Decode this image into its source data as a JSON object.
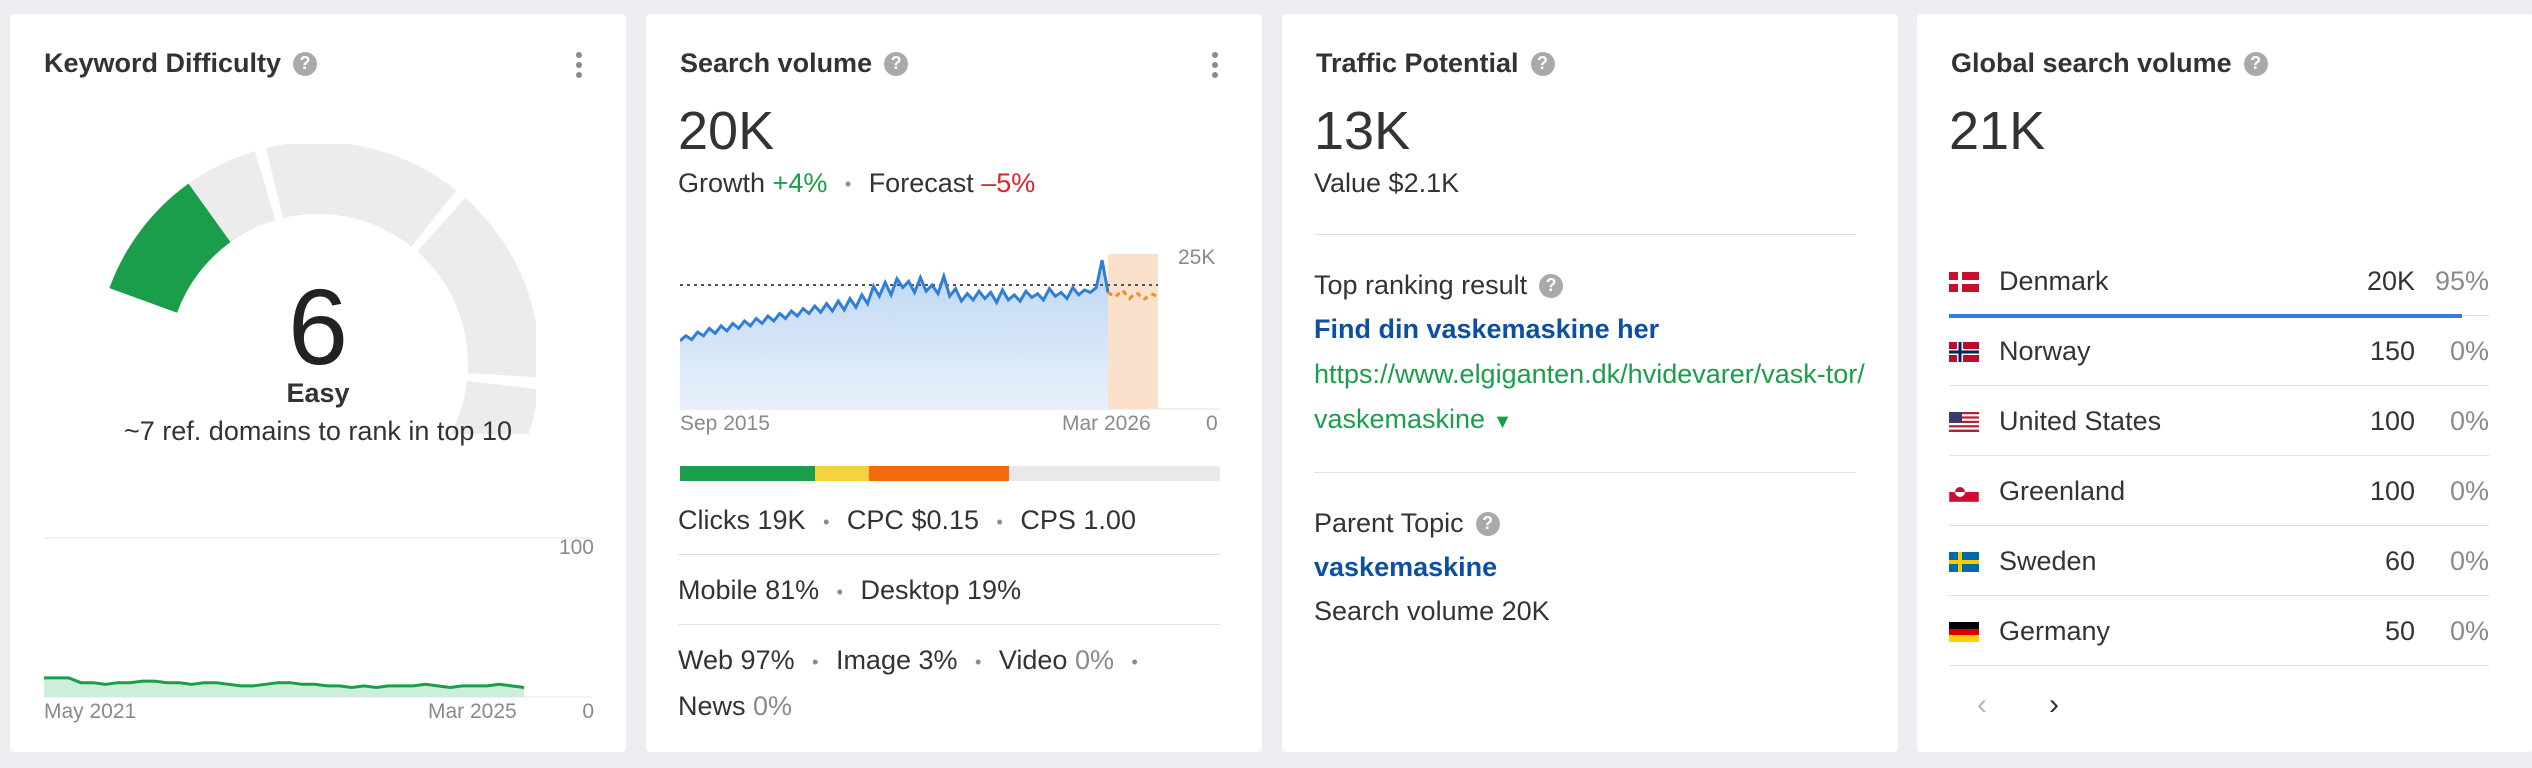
{
  "keyword_difficulty": {
    "title": "Keyword Difficulty",
    "help_icon": "?",
    "value": "6",
    "score": 6,
    "label": "Easy",
    "description": "~7 ref. domains to rank in top 10",
    "chart": {
      "x_start": "May 2021",
      "x_end": "Mar 2025",
      "y_max_label": "100",
      "y_min_label": "0",
      "color": "#1a9e4b"
    },
    "chart_data": {
      "type": "area",
      "ylim": [
        0,
        100
      ],
      "values": [
        12,
        12,
        12,
        9,
        9,
        8,
        9,
        9,
        10,
        10,
        9,
        9,
        8,
        9,
        9,
        8,
        7,
        7,
        8,
        9,
        9,
        8,
        8,
        7,
        7,
        6,
        7,
        6,
        7,
        7,
        7,
        8,
        7,
        6,
        7,
        7,
        7,
        8,
        7,
        6
      ]
    }
  },
  "search_volume": {
    "title": "Search volume",
    "help_icon": "?",
    "value": "20K",
    "growth_label": "Growth",
    "growth_value": "+4%",
    "forecast_label": "Forecast",
    "forecast_value": "–5%",
    "chart": {
      "x_start": "Sep 2015",
      "x_end": "Mar 2026",
      "y_top_label": "25K",
      "y_min_label": "0",
      "line_color": "#2f7ed8",
      "forecast_color": "#f08c24"
    },
    "chart_data": {
      "type": "area",
      "ylim": [
        0,
        25000
      ],
      "reference_line": 20000,
      "values": [
        11000,
        11800,
        11200,
        12400,
        11800,
        13000,
        12200,
        13400,
        12600,
        13800,
        13000,
        14200,
        13400,
        14600,
        13800,
        15000,
        14200,
        15400,
        14600,
        15800,
        15000,
        16200,
        15400,
        16600,
        15600,
        17000,
        15800,
        17400,
        16000,
        17800,
        16400,
        18400,
        17000,
        19800,
        18200,
        20400,
        18400,
        21000,
        19600,
        20600,
        18800,
        21200,
        19000,
        20000,
        18600,
        21400,
        18200,
        19400,
        17400,
        18600,
        17600,
        19000,
        17800,
        18800,
        17200,
        19200,
        17600,
        18400,
        17400,
        19000,
        18000,
        18600,
        17600,
        19400,
        18200,
        18800,
        17800,
        19600,
        18400,
        19200,
        18800,
        19600,
        24000,
        18800
      ],
      "forecast": [
        18800,
        18000,
        19200,
        17800,
        18800,
        17600,
        18600,
        18200
      ]
    },
    "intent_bar": [
      {
        "color": "#1a9e4b",
        "share": 25
      },
      {
        "color": "#f5d33f",
        "share": 10
      },
      {
        "color": "#f26c0d",
        "share": 26
      }
    ],
    "metrics": {
      "clicks_label": "Clicks",
      "clicks_value": "19K",
      "cpc_label": "CPC",
      "cpc_value": "$0.15",
      "cps_label": "CPS",
      "cps_value": "1.00",
      "mobile_label": "Mobile",
      "mobile_value": "81%",
      "desktop_label": "Desktop",
      "desktop_value": "19%",
      "web_label": "Web",
      "web_value": "97%",
      "image_label": "Image",
      "image_value": "3%",
      "video_label": "Video",
      "video_value": "0%",
      "news_label": "News",
      "news_value": "0%"
    }
  },
  "traffic_potential": {
    "title": "Traffic Potential",
    "help_icon": "?",
    "value": "13K",
    "value_line": "Value $2.1K",
    "top_result_label": "Top ranking result",
    "top_result_title": "Find din vaskemaskine her",
    "top_result_url": "https://www.elgiganten.dk/hvidevarer/vask-tor/vaskemaskine",
    "parent_topic_label": "Parent Topic",
    "parent_topic_link": "vaskemaskine",
    "parent_topic_volume": "Search volume 20K"
  },
  "global_search_volume": {
    "title": "Global search volume",
    "help_icon": "?",
    "value": "21K",
    "countries": [
      {
        "name": "Denmark",
        "volume": "20K",
        "share": "95%",
        "share_value": 95
      },
      {
        "name": "Norway",
        "volume": "150",
        "share": "0%",
        "share_value": 0
      },
      {
        "name": "United States",
        "volume": "100",
        "share": "0%",
        "share_value": 0
      },
      {
        "name": "Greenland",
        "volume": "100",
        "share": "0%",
        "share_value": 0
      },
      {
        "name": "Sweden",
        "volume": "60",
        "share": "0%",
        "share_value": 0
      },
      {
        "name": "Germany",
        "volume": "50",
        "share": "0%",
        "share_value": 0
      }
    ],
    "pager_prev": "‹",
    "pager_next": "›",
    "accent_color": "#2f7ed8"
  }
}
